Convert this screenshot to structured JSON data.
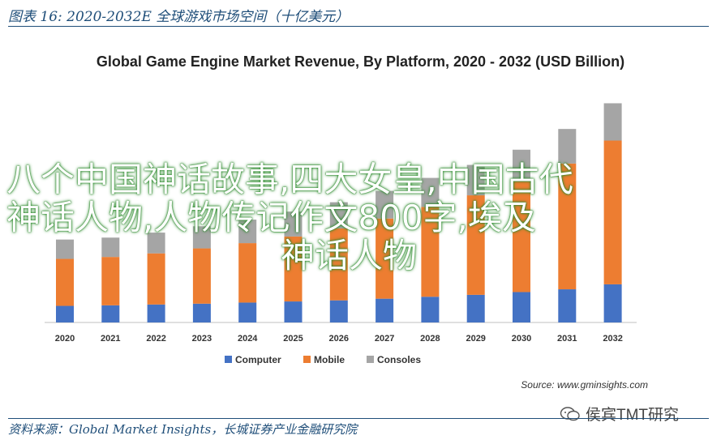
{
  "caption": "图表 16:  2020-2032E 全球游戏市场空间（十亿美元）",
  "footer": "资料来源：Global Market Insights，长城证券产业金融研究院",
  "source_note": "Source: www.gminsights.com",
  "watermark": "侯宾TMT研究",
  "overlay_text": {
    "line1": "八个中国神话故事,四大女皇,中国古代",
    "line2": "神话人物,人物传记作文800字,埃及",
    "line3": "神话人物"
  },
  "colors": {
    "computer": "#4472c4",
    "mobile": "#ed7d31",
    "consoles": "#a5a5a5"
  },
  "chart_data": {
    "type": "bar",
    "stacked": true,
    "title": "Global Game Engine Market Revenue, By Platform, 2020 - 2032 (USD Billion)",
    "categories": [
      "2020",
      "2021",
      "2022",
      "2023",
      "2024",
      "2025",
      "2026",
      "2027",
      "2028",
      "2029",
      "2030",
      "2031",
      "2032"
    ],
    "series": [
      {
        "name": "Computer",
        "values": [
          0.6,
          0.62,
          0.65,
          0.68,
          0.72,
          0.76,
          0.8,
          0.86,
          0.93,
          1.0,
          1.1,
          1.2,
          1.38
        ]
      },
      {
        "name": "Mobile",
        "values": [
          1.7,
          1.75,
          1.85,
          2.0,
          2.15,
          2.35,
          2.6,
          2.9,
          3.25,
          3.6,
          4.0,
          4.55,
          5.2
        ]
      },
      {
        "name": "Consoles",
        "values": [
          0.7,
          0.7,
          0.75,
          0.8,
          0.85,
          0.9,
          0.95,
          1.0,
          1.05,
          1.1,
          1.15,
          1.25,
          1.35
        ]
      }
    ],
    "ylim": [
      0,
      8.5
    ],
    "legend": "bottom"
  }
}
